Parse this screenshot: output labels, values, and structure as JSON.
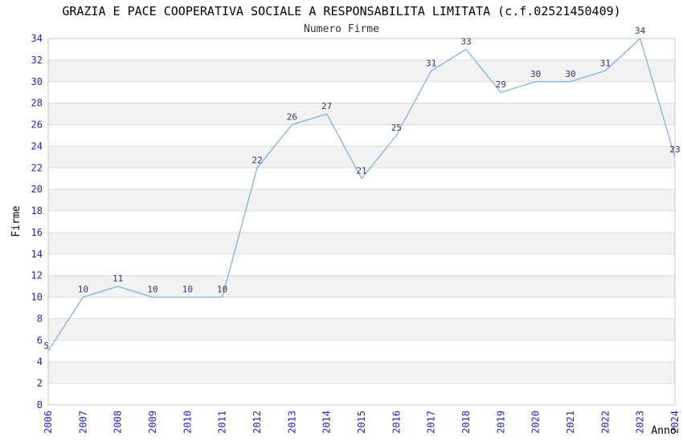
{
  "chart_data": {
    "type": "line",
    "title": "GRAZIA E PACE COOPERATIVA SOCIALE A RESPONSABILITA LIMITATA (c.f.02521450409)",
    "subtitle": "Numero Firme",
    "xlabel": "Anno",
    "ylabel": "Firme",
    "categories": [
      "2006",
      "2007",
      "2008",
      "2009",
      "2010",
      "2011",
      "2012",
      "2013",
      "2014",
      "2015",
      "2016",
      "2017",
      "2018",
      "2019",
      "2020",
      "2021",
      "2022",
      "2023",
      "2024"
    ],
    "values": [
      5,
      10,
      11,
      10,
      10,
      10,
      22,
      26,
      27,
      21,
      25,
      31,
      33,
      29,
      30,
      30,
      31,
      34,
      23
    ],
    "ylim": [
      0,
      34
    ],
    "ytick_step": 2,
    "grid": true,
    "legend_position": "none",
    "colors": {
      "line": "#7fb2e5",
      "point_labels": "#333377",
      "tick_labels": "#2222cc",
      "axis_labels": "#000000",
      "title": "#000000",
      "subtitle": "#333333",
      "band_fill": "#f2f2f2",
      "grid_line": "#dcdcdc",
      "plot_border": "#c8c8c8",
      "background": "#ffffff"
    }
  }
}
